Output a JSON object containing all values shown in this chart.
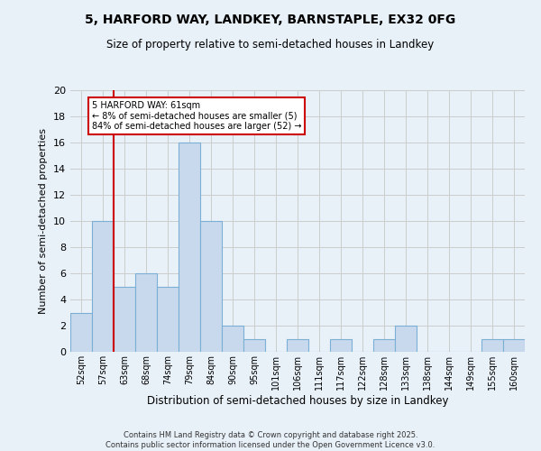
{
  "title1": "5, HARFORD WAY, LANDKEY, BARNSTAPLE, EX32 0FG",
  "title2": "Size of property relative to semi-detached houses in Landkey",
  "xlabel": "Distribution of semi-detached houses by size in Landkey",
  "ylabel": "Number of semi-detached properties",
  "footer1": "Contains HM Land Registry data © Crown copyright and database right 2025.",
  "footer2": "Contains public sector information licensed under the Open Government Licence v3.0.",
  "categories": [
    "52sqm",
    "57sqm",
    "63sqm",
    "68sqm",
    "74sqm",
    "79sqm",
    "84sqm",
    "90sqm",
    "95sqm",
    "101sqm",
    "106sqm",
    "111sqm",
    "117sqm",
    "122sqm",
    "128sqm",
    "133sqm",
    "138sqm",
    "144sqm",
    "149sqm",
    "155sqm",
    "160sqm"
  ],
  "values": [
    3,
    10,
    5,
    6,
    5,
    16,
    10,
    2,
    1,
    0,
    1,
    0,
    1,
    0,
    1,
    2,
    0,
    0,
    0,
    1,
    1
  ],
  "bar_color": "#c9d9ed",
  "bar_edge_color": "#7bafd4",
  "grid_color": "#cccccc",
  "background_color": "#e8f0f8",
  "vline_color": "#cc0000",
  "annotation_text": "5 HARFORD WAY: 61sqm\n← 8% of semi-detached houses are smaller (5)\n84% of semi-detached houses are larger (52) →",
  "annotation_box_color": "#ffffff",
  "annotation_box_edge": "#cc0000",
  "ylim": [
    0,
    20
  ],
  "yticks": [
    0,
    2,
    4,
    6,
    8,
    10,
    12,
    14,
    16,
    18,
    20
  ]
}
